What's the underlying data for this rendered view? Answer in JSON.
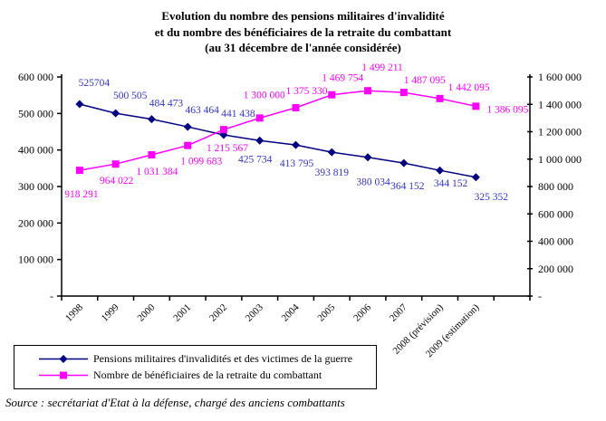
{
  "chart_data": {
    "type": "line",
    "title_lines": [
      "Evolution du nombre des pensions militaires d'invalidité",
      "et du nombre des bénéficiaires de la retraite du combattant",
      "(au 31 décembre de l'année considérée)"
    ],
    "categories": [
      "1998",
      "1999",
      "2000",
      "2001",
      "2002",
      "2003",
      "2004",
      "2005",
      "2006",
      "2007",
      "2008 (prévision)",
      "2009 (estimation)"
    ],
    "left_axis": {
      "min": 0,
      "max": 600000,
      "step": 100000,
      "tick_labels": [
        "600 000",
        "500 000",
        "400 000",
        "300 000",
        "200 000",
        "100 000",
        "-"
      ]
    },
    "right_axis": {
      "min": 0,
      "max": 1600000,
      "step": 200000,
      "tick_labels": [
        "1 600 000",
        "1 400 000",
        "1 200 000",
        "1 000 000",
        "800 000",
        "600 000",
        "400 000",
        "200 000",
        "-"
      ]
    },
    "grid": false,
    "legend_position": "bottom-left-box",
    "series": [
      {
        "name": "Pensions militaires d'invalidités et des victimes de la guerre",
        "axis": "left",
        "color": "#000080",
        "label_color": "#3333CC",
        "marker": "diamond",
        "values": [
          525704,
          500505,
          484473,
          463464,
          441438,
          425734,
          413795,
          393819,
          380034,
          364152,
          344152,
          325352
        ],
        "labels": [
          "525704",
          "500 505",
          "484 473",
          "463 464",
          "441 438",
          "425 734",
          "413 795",
          "393 819",
          "380 034",
          "364 152",
          "344 152",
          "325 352"
        ],
        "label_offsets": [
          [
            16,
            -24
          ],
          [
            16,
            -20
          ],
          [
            16,
            -18
          ],
          [
            16,
            -19
          ],
          [
            16,
            -24
          ],
          [
            -5,
            20
          ],
          [
            1,
            20
          ],
          [
            0,
            22
          ],
          [
            6,
            27
          ],
          [
            4,
            25
          ],
          [
            12,
            14
          ],
          [
            17,
            21
          ]
        ]
      },
      {
        "name": "Nombre de bénéficiaires de la retraite du combattant",
        "axis": "right",
        "color": "#FF00FF",
        "label_color": "#FF00FF",
        "marker": "square",
        "values": [
          918291,
          964022,
          1031384,
          1099683,
          1215567,
          1300000,
          1375330,
          1469754,
          1499211,
          1487095,
          1442095,
          1386095
        ],
        "labels": [
          "918 291",
          "964 022",
          "1 031 384",
          "1 099 683",
          "1 215 567",
          "1 300 000",
          "1 375 330",
          "1 469 754",
          "1 499 211",
          "1 487 095",
          "1 442 095",
          "1 386 095"
        ],
        "label_offsets": [
          [
            2,
            26
          ],
          [
            1,
            18
          ],
          [
            6,
            18
          ],
          [
            15,
            17
          ],
          [
            4,
            20
          ],
          [
            5,
            -26
          ],
          [
            12,
            -19
          ],
          [
            12,
            -19
          ],
          [
            16,
            -26
          ],
          [
            23,
            -14
          ],
          [
            32,
            -13
          ],
          [
            35,
            3
          ]
        ]
      }
    ],
    "source": "Source : secrétariat d'Etat à la défense, chargé des anciens combattants"
  }
}
